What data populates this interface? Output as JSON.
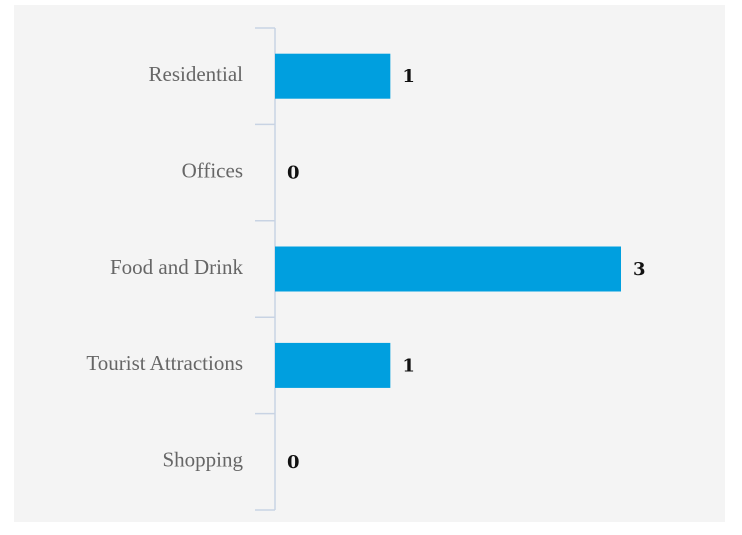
{
  "chart_data": {
    "type": "hbar",
    "categories": [
      "Residential",
      "Offices",
      "Food and Drink",
      "Tourist Attractions",
      "Shopping"
    ],
    "values": [
      1,
      0,
      3,
      1,
      0
    ],
    "color": "#009fdf"
  }
}
